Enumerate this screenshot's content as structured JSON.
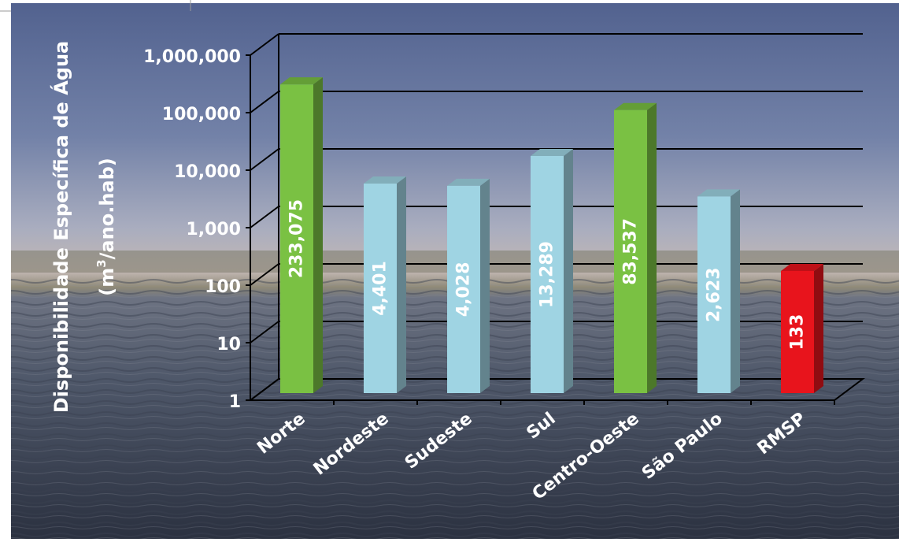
{
  "chart_data": {
    "type": "bar",
    "categories": [
      "Norte",
      "Nordeste",
      "Sudeste",
      "Sul",
      "Centro-Oeste",
      "São Paulo",
      "RMSP"
    ],
    "values": [
      233075,
      4401,
      4028,
      13289,
      83537,
      2623,
      133
    ],
    "value_labels": [
      "233,075",
      "4,401",
      "4,028",
      "13,289",
      "83,537",
      "2,623",
      "133"
    ],
    "bar_colors": [
      "#7ac143",
      "#9fd4e3",
      "#9fd4e3",
      "#9fd4e3",
      "#7ac143",
      "#9fd4e3",
      "#e8141c"
    ],
    "yscale": "log",
    "ylim": [
      1,
      1000000
    ],
    "yticks": [
      1,
      10,
      100,
      1000,
      10000,
      100000,
      1000000
    ],
    "ytick_labels": [
      "1",
      "10",
      "100",
      "1,000",
      "10,000",
      "100,000",
      "1,000,000"
    ],
    "ylabel_line1": "Disponibilidade Específica de Água",
    "ylabel_line2_pre": "(m",
    "ylabel_line2_sup": "3",
    "ylabel_line2_post": "/ano.hab)",
    "grid": true,
    "style": "3d-column",
    "background": "photo-water-sky"
  }
}
